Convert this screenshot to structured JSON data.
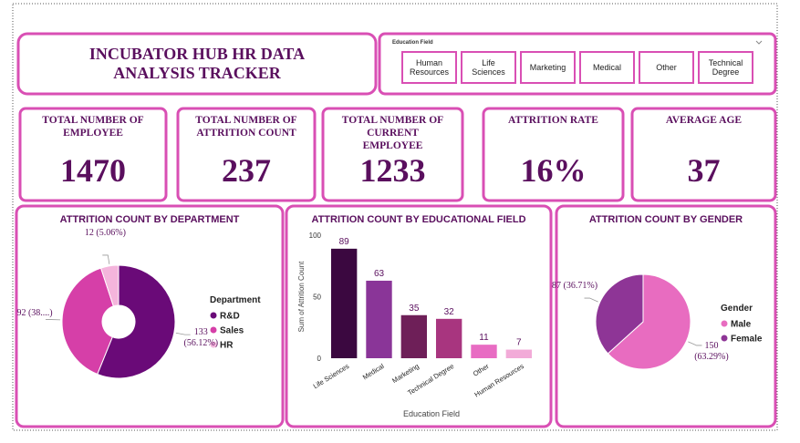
{
  "title": "INCUBATOR HUB HR DATA ANALYSIS TRACKER",
  "slicer": {
    "label": "Education Field",
    "options": [
      "Human Resources",
      "Life Sciences",
      "Marketing",
      "Medical",
      "Other",
      "Technical Degree"
    ]
  },
  "cards": [
    {
      "label": "TOTAL NUMBER OF EMPLOYEE",
      "value": 1470
    },
    {
      "label": "TOTAL NUMBER OF ATTRITION COUNT",
      "value": 237
    },
    {
      "label": "TOTAL NUMBER OF CURRENT EMPLOYEE",
      "value": 1233
    },
    {
      "label": "ATTRITION RATE",
      "value": "16%"
    },
    {
      "label": "AVERAGE AGE",
      "value": 37
    }
  ],
  "chart_data": [
    {
      "type": "donut",
      "title": "ATTRITION COUNT BY DEPARTMENT",
      "legend_title": "Department",
      "categories": [
        "R&D",
        "Sales",
        "HR"
      ],
      "values": [
        133,
        92,
        12
      ],
      "value_labels": [
        "133 (56.12%)",
        "92 (38....)",
        "12 (5.06%)"
      ],
      "colors": [
        "#6a0a78",
        "#d63fa8",
        "#f4b5dc"
      ]
    },
    {
      "type": "bar",
      "title": "ATTRITION COUNT BY EDUCATIONAL FIELD",
      "x_label": "Education Field",
      "y_label": "Sum of Attrition Count",
      "categories": [
        "Life Sciences",
        "Medical",
        "Marketing",
        "Technical Degree",
        "Other",
        "Human Resources"
      ],
      "values": [
        89,
        63,
        35,
        32,
        11,
        7
      ],
      "colors": [
        "#3b0840",
        "#8a3598",
        "#6e1f58",
        "#a8357f",
        "#e86cc3",
        "#f2abd8"
      ],
      "ylim": [
        0,
        100
      ],
      "yticks": [
        0,
        50,
        100
      ]
    },
    {
      "type": "pie",
      "title": "ATTRITION COUNT BY GENDER",
      "legend_title": "Gender",
      "categories": [
        "Male",
        "Female"
      ],
      "values": [
        150,
        87
      ],
      "value_labels": [
        "150 (63.29%)",
        "87 (36.71%)"
      ],
      "colors": [
        "#e86cc0",
        "#8e3596"
      ]
    }
  ]
}
